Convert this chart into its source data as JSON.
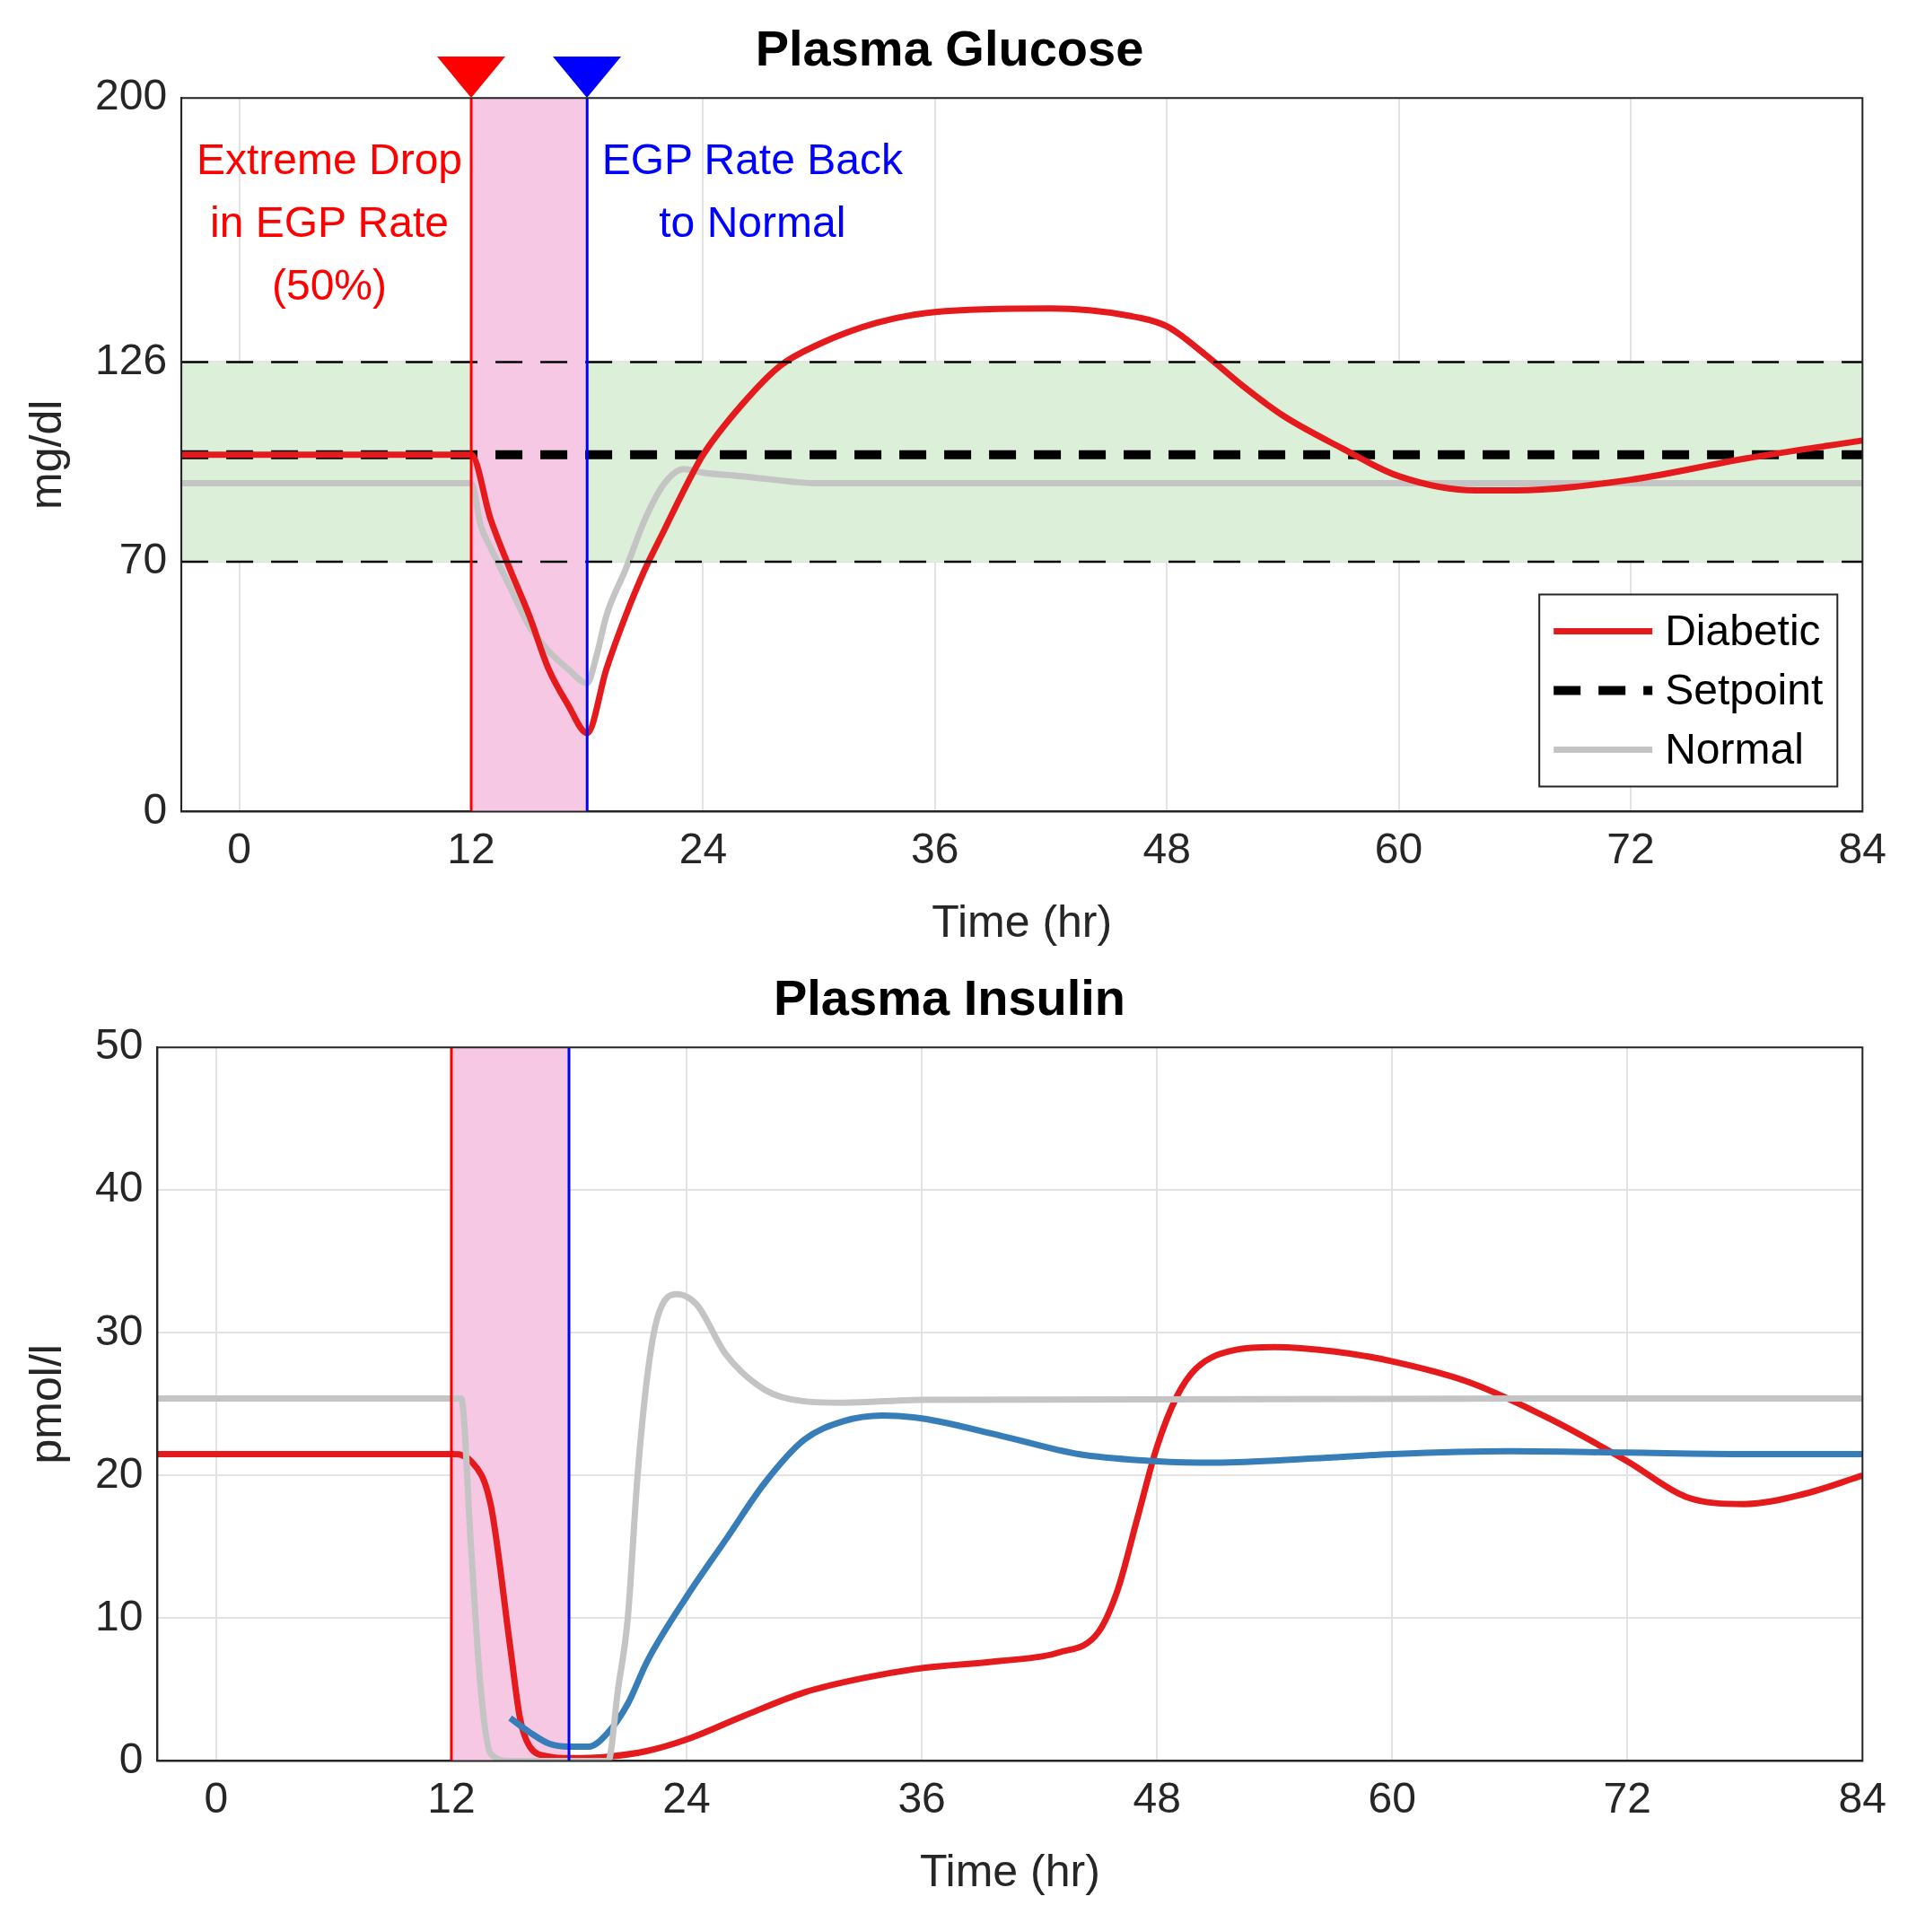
{
  "chart_data": [
    {
      "type": "line",
      "title": "Plasma Glucose",
      "xlabel": "Time (hr)",
      "ylabel": "mg/dl",
      "xlim": [
        -3,
        84
      ],
      "xticks": [
        0,
        12,
        24,
        36,
        48,
        60,
        72,
        84
      ],
      "ylim": [
        0,
        200
      ],
      "yticks": [
        0,
        70,
        126,
        200
      ],
      "grid": true,
      "legend": "bottom right",
      "bands": [
        {
          "axis": "y",
          "from": 70,
          "to": 126,
          "color": "#dcefd9"
        },
        {
          "axis": "x",
          "from": 12,
          "to": 18,
          "color": "#f6c8e4"
        }
      ],
      "ref_lines": [
        {
          "axis": "y",
          "value": 70,
          "color": "#000000",
          "line_style": "dashed"
        },
        {
          "axis": "y",
          "value": 126,
          "color": "#000000",
          "line_style": "dashed"
        },
        {
          "axis": "x",
          "value": 12,
          "label": "Extreme Drop\nin EGP Rate\n(50%)",
          "color": "#ff0000",
          "line_style": "solid"
        },
        {
          "axis": "x",
          "value": 18,
          "label": "EGP Rate Back\nto Normal",
          "color": "#0000ff",
          "line_style": "solid"
        }
      ],
      "series": [
        {
          "name": "Diabetic",
          "color": "#e41a1c",
          "line_style": "solid",
          "x": [
            -3,
            12,
            13,
            14,
            15,
            16,
            17,
            18,
            19,
            20,
            21,
            22,
            23,
            24,
            26,
            28,
            30,
            33,
            36,
            42,
            46,
            48,
            50,
            52,
            54,
            57,
            60,
            64,
            66,
            72,
            78,
            84
          ],
          "values": [
            100,
            100,
            82,
            68,
            55,
            40,
            30,
            22,
            40,
            55,
            68,
            79,
            90,
            100,
            114,
            125,
            131,
            137,
            140,
            141,
            139,
            136,
            128,
            119,
            111,
            102,
            94,
            90,
            90,
            93,
            99,
            104
          ]
        },
        {
          "name": "Setpoint",
          "color": "#000000",
          "line_style": "dashed",
          "x": [
            -3,
            84
          ],
          "values": [
            100,
            100
          ]
        },
        {
          "name": "Normal",
          "color": "#c4c4c4",
          "line_style": "solid",
          "x": [
            -3,
            12,
            12.5,
            13,
            14,
            15,
            16,
            17,
            18,
            18.5,
            19,
            20,
            21,
            22,
            23,
            24,
            26,
            30,
            84
          ],
          "values": [
            92,
            92,
            80,
            74,
            63,
            52,
            45,
            40,
            36,
            44,
            55,
            68,
            82,
            92,
            96,
            95,
            94,
            92,
            92
          ]
        }
      ]
    },
    {
      "type": "line",
      "title": "Plasma Insulin",
      "xlabel": "Time (hr)",
      "ylabel": "pmol/l",
      "xlim": [
        -3,
        84
      ],
      "xticks": [
        0,
        12,
        24,
        36,
        48,
        60,
        72,
        84
      ],
      "ylim": [
        0,
        50
      ],
      "yticks": [
        0,
        10,
        20,
        30,
        40,
        50
      ],
      "grid": true,
      "bands": [
        {
          "axis": "x",
          "from": 12,
          "to": 18,
          "color": "#f6c8e4"
        }
      ],
      "ref_lines": [
        {
          "axis": "x",
          "value": 12,
          "color": "#ff0000",
          "line_style": "solid"
        },
        {
          "axis": "x",
          "value": 18,
          "color": "#0000ff",
          "line_style": "solid"
        }
      ],
      "series": [
        {
          "color": "#c4c4c4",
          "line_style": "solid",
          "x": [
            -3,
            12.5,
            13,
            13.5,
            14,
            15,
            20,
            20.5,
            21,
            21.5,
            22,
            22.5,
            23.5,
            24.5,
            26,
            28,
            30,
            32,
            36,
            84
          ],
          "values": [
            25.4,
            25.4,
            15,
            5,
            0.5,
            0,
            0,
            5,
            10,
            20,
            27,
            31,
            32.7,
            32,
            28.5,
            26,
            25.2,
            25.1,
            25.3,
            25.4
          ]
        },
        {
          "color": "#377eb8",
          "line_style": "solid",
          "x": [
            15,
            16,
            17,
            18,
            19,
            20,
            21,
            22,
            24,
            26,
            28,
            30,
            32,
            34,
            36,
            40,
            44,
            48,
            51,
            56,
            60,
            66,
            72,
            78,
            84
          ],
          "values": [
            3,
            2,
            1.2,
            1,
            1,
            2,
            4,
            7,
            11.5,
            15.5,
            19.5,
            22.5,
            23.8,
            24.2,
            24,
            22.8,
            21.5,
            21,
            20.9,
            21.2,
            21.5,
            21.7,
            21.6,
            21.5,
            21.5
          ]
        },
        {
          "color": "#e41a1c",
          "line_style": "solid",
          "x": [
            -3,
            12,
            13,
            14,
            15,
            15.5,
            16,
            17,
            18,
            20,
            22,
            24,
            27,
            30,
            33,
            36,
            40,
            43,
            45,
            46,
            47,
            48,
            49,
            50,
            52,
            54,
            57,
            60,
            64,
            68,
            72,
            75,
            78,
            81,
            84
          ],
          "values": [
            21.5,
            21.5,
            21,
            18,
            8,
            3,
            1,
            0.3,
            0.2,
            0.3,
            0.7,
            1.5,
            3.2,
            4.8,
            5.8,
            6.5,
            7,
            7.6,
            9,
            12,
            17,
            22,
            25.5,
            27.5,
            28.8,
            29,
            28.7,
            28,
            26.5,
            24,
            21,
            18.5,
            18,
            18.7,
            20
          ]
        }
      ]
    }
  ]
}
